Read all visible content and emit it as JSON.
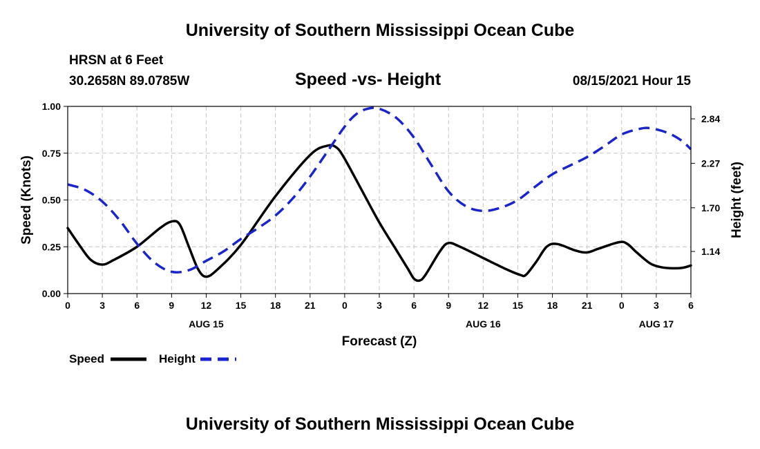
{
  "page": {
    "top_title": "University of Southern Mississippi Ocean Cube",
    "bottom_title": "University of Southern Mississippi Ocean Cube",
    "station": "HRSN at 6 Feet",
    "coords": "30.2658N  89.0785W",
    "datetime": "08/15/2021 Hour 15"
  },
  "chart_data": {
    "type": "line",
    "title": "Speed -vs- Height",
    "xlabel": "Forecast (Z)",
    "ylabel": "Speed (Knots)",
    "y2label": "Height (feet)",
    "xlim": [
      0,
      54
    ],
    "ylim": [
      0,
      1.0
    ],
    "y2lim": [
      0.6,
      3.0
    ],
    "grid": true,
    "x_ticks": [
      {
        "x": 0,
        "label": "0"
      },
      {
        "x": 3,
        "label": "3"
      },
      {
        "x": 6,
        "label": "6"
      },
      {
        "x": 9,
        "label": "9"
      },
      {
        "x": 12,
        "label": "12"
      },
      {
        "x": 15,
        "label": "15"
      },
      {
        "x": 18,
        "label": "18"
      },
      {
        "x": 21,
        "label": "21"
      },
      {
        "x": 24,
        "label": "0"
      },
      {
        "x": 27,
        "label": "3"
      },
      {
        "x": 30,
        "label": "6"
      },
      {
        "x": 33,
        "label": "9"
      },
      {
        "x": 36,
        "label": "12"
      },
      {
        "x": 39,
        "label": "15"
      },
      {
        "x": 42,
        "label": "18"
      },
      {
        "x": 45,
        "label": "21"
      },
      {
        "x": 48,
        "label": "0"
      },
      {
        "x": 51,
        "label": "3"
      },
      {
        "x": 54,
        "label": "6"
      }
    ],
    "date_labels": [
      {
        "x": 12,
        "label": "AUG 15"
      },
      {
        "x": 36,
        "label": "AUG 16"
      },
      {
        "x": 51,
        "label": "AUG 17"
      }
    ],
    "y_ticks": [
      {
        "v": 0.0,
        "label": "0.00"
      },
      {
        "v": 0.25,
        "label": "0.25"
      },
      {
        "v": 0.5,
        "label": "0.50"
      },
      {
        "v": 0.75,
        "label": "0.75"
      },
      {
        "v": 1.0,
        "label": "1.00"
      }
    ],
    "y2_ticks": [
      {
        "v": 1.14,
        "label": "1.14"
      },
      {
        "v": 1.7,
        "label": "1.70"
      },
      {
        "v": 2.27,
        "label": "2.27"
      },
      {
        "v": 2.84,
        "label": "2.84"
      }
    ],
    "series": [
      {
        "name": "Speed",
        "axis": "left",
        "color": "#000000",
        "dash": "solid",
        "points": [
          [
            0,
            0.35
          ],
          [
            1,
            0.26
          ],
          [
            2,
            0.18
          ],
          [
            3,
            0.155
          ],
          [
            4,
            0.18
          ],
          [
            6,
            0.25
          ],
          [
            8,
            0.35
          ],
          [
            9,
            0.385
          ],
          [
            9.7,
            0.37
          ],
          [
            10.5,
            0.25
          ],
          [
            11.3,
            0.13
          ],
          [
            12,
            0.09
          ],
          [
            13,
            0.13
          ],
          [
            15,
            0.26
          ],
          [
            18,
            0.52
          ],
          [
            21,
            0.74
          ],
          [
            22.5,
            0.79
          ],
          [
            23.3,
            0.78
          ],
          [
            24,
            0.72
          ],
          [
            25.5,
            0.55
          ],
          [
            27,
            0.38
          ],
          [
            28.5,
            0.23
          ],
          [
            29.5,
            0.13
          ],
          [
            30,
            0.08
          ],
          [
            30.5,
            0.07
          ],
          [
            31,
            0.1
          ],
          [
            32.3,
            0.23
          ],
          [
            33,
            0.27
          ],
          [
            34,
            0.25
          ],
          [
            36,
            0.19
          ],
          [
            38,
            0.13
          ],
          [
            39.2,
            0.1
          ],
          [
            39.7,
            0.1
          ],
          [
            40.6,
            0.17
          ],
          [
            41.5,
            0.25
          ],
          [
            42.4,
            0.265
          ],
          [
            44,
            0.23
          ],
          [
            45,
            0.22
          ],
          [
            46,
            0.24
          ],
          [
            47.8,
            0.275
          ],
          [
            48.5,
            0.265
          ],
          [
            49.3,
            0.22
          ],
          [
            50.5,
            0.16
          ],
          [
            51.5,
            0.14
          ],
          [
            52.5,
            0.135
          ],
          [
            53.3,
            0.138
          ],
          [
            54,
            0.15
          ]
        ]
      },
      {
        "name": "Height",
        "axis": "right",
        "color": "#1a24cc",
        "dash": "dashed",
        "points": [
          [
            0,
            2.0
          ],
          [
            1.5,
            1.93
          ],
          [
            3,
            1.78
          ],
          [
            4.5,
            1.54
          ],
          [
            6,
            1.24
          ],
          [
            7.5,
            1.0
          ],
          [
            9,
            0.88
          ],
          [
            10.5,
            0.9
          ],
          [
            12,
            1.02
          ],
          [
            13.5,
            1.14
          ],
          [
            15,
            1.3
          ],
          [
            16.5,
            1.44
          ],
          [
            18,
            1.6
          ],
          [
            19.5,
            1.82
          ],
          [
            21,
            2.1
          ],
          [
            22.5,
            2.42
          ],
          [
            24,
            2.74
          ],
          [
            25,
            2.9
          ],
          [
            26,
            2.97
          ],
          [
            27,
            2.97
          ],
          [
            28.5,
            2.85
          ],
          [
            30,
            2.6
          ],
          [
            31.5,
            2.25
          ],
          [
            33,
            1.91
          ],
          [
            34.5,
            1.72
          ],
          [
            36,
            1.66
          ],
          [
            37.5,
            1.7
          ],
          [
            39,
            1.8
          ],
          [
            40.5,
            1.97
          ],
          [
            42,
            2.13
          ],
          [
            43.5,
            2.24
          ],
          [
            45,
            2.35
          ],
          [
            46.5,
            2.49
          ],
          [
            48,
            2.64
          ],
          [
            49.5,
            2.71
          ],
          [
            50.5,
            2.72
          ],
          [
            52,
            2.66
          ],
          [
            53.2,
            2.56
          ],
          [
            54,
            2.45
          ]
        ]
      }
    ],
    "legend": [
      {
        "label": "Speed",
        "color": "#000000",
        "dash": "solid"
      },
      {
        "label": "Height",
        "color": "#1a24cc",
        "dash": "dashed"
      }
    ]
  }
}
